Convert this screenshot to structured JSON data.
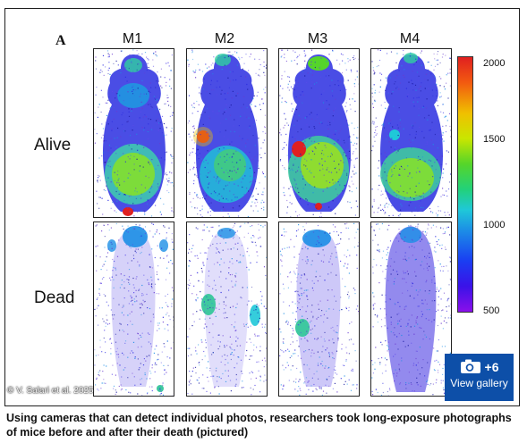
{
  "figure": {
    "panel_letter": "A",
    "columns": [
      "M1",
      "M2",
      "M3",
      "M4"
    ],
    "rows": [
      "Alive",
      "Dead"
    ],
    "colorbar_ticks": [
      "2000",
      "1500",
      "1000",
      "500"
    ],
    "colorbar_colors": [
      "#e02020",
      "#f0c000",
      "#55d52a",
      "#1fc8d8",
      "#1a3ef2",
      "#8a10ea"
    ]
  },
  "credit": "© V. Salari et al. 2025",
  "gallery": {
    "icon": "camera-icon",
    "count": "+6",
    "label": "View gallery"
  },
  "caption": "Using cameras that can detect individual photos, researchers took long-exposure photographs of mice before and after their death (pictured)"
}
